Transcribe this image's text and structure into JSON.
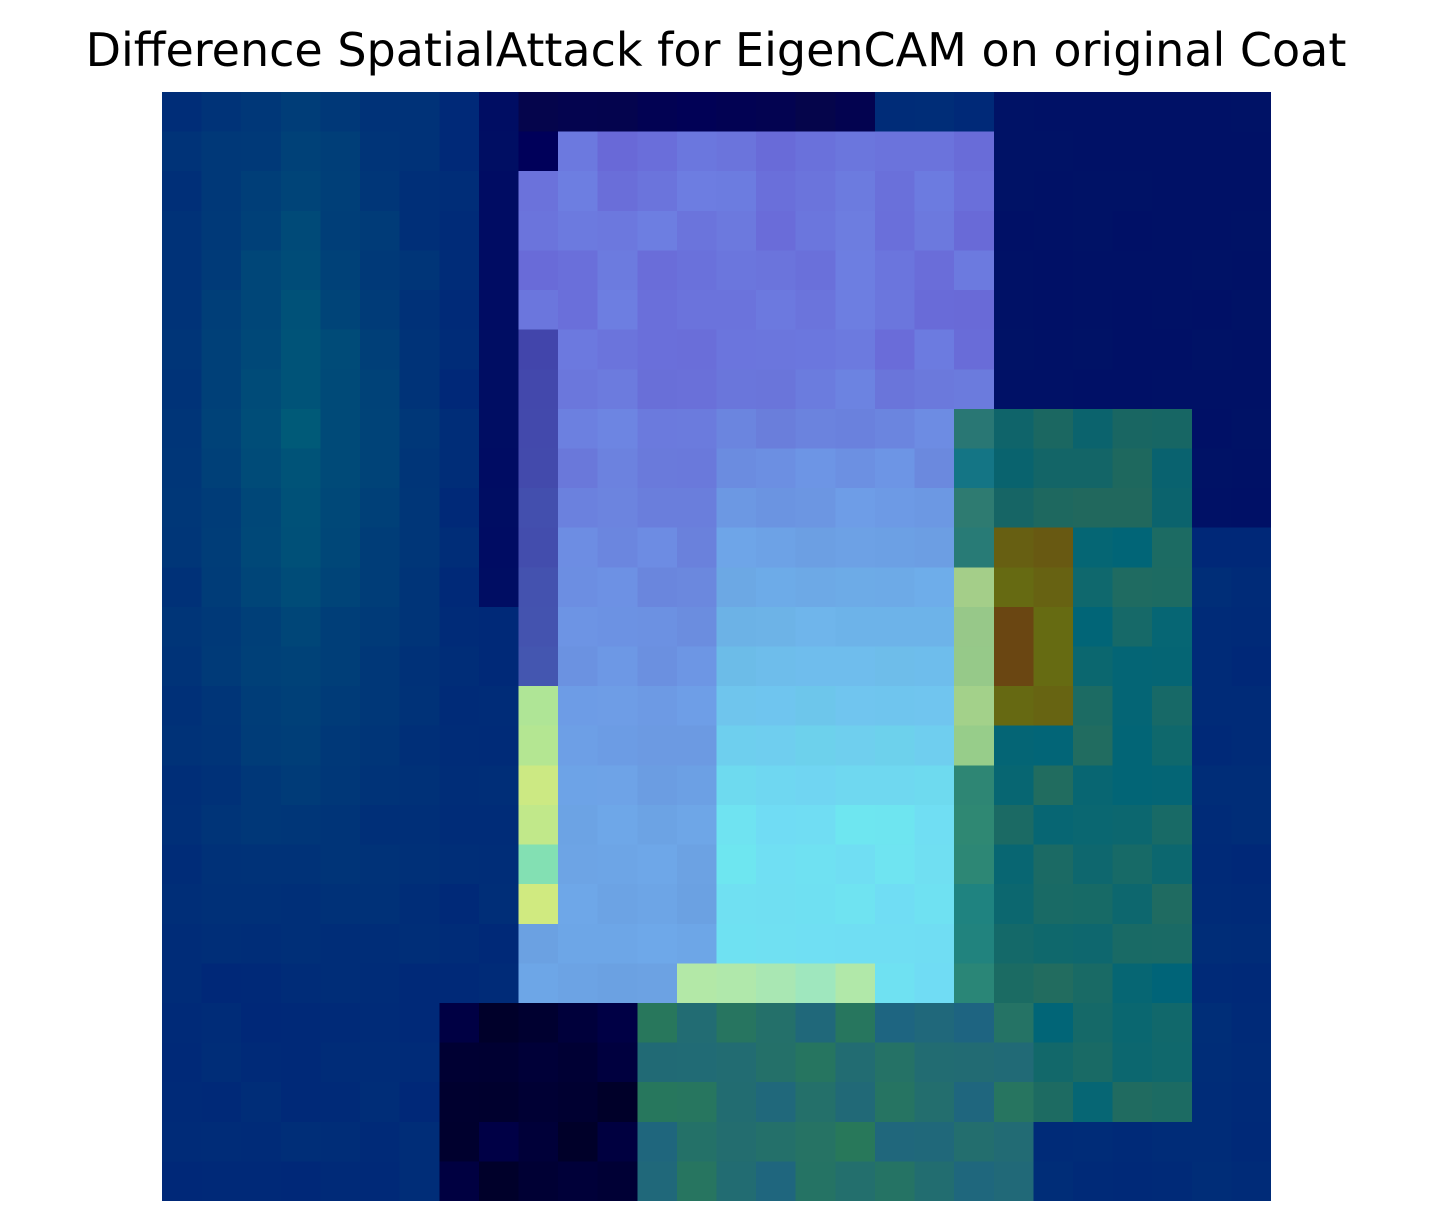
{
  "figure": {
    "title": "Difference SpatialAttack for EigenCAM on original Coat"
  },
  "image": {
    "rows": 28,
    "cols": 28,
    "subject": "Coat",
    "palette": {
      "base_blue": "#00256f",
      "navy": "#000060",
      "teal": "#00707a",
      "cyan": "#7fefff",
      "lavender": "#6f6fdc",
      "olive": "#7f7a00",
      "brown": "#7f4a00",
      "yellow": "#e7f07a"
    }
  }
}
